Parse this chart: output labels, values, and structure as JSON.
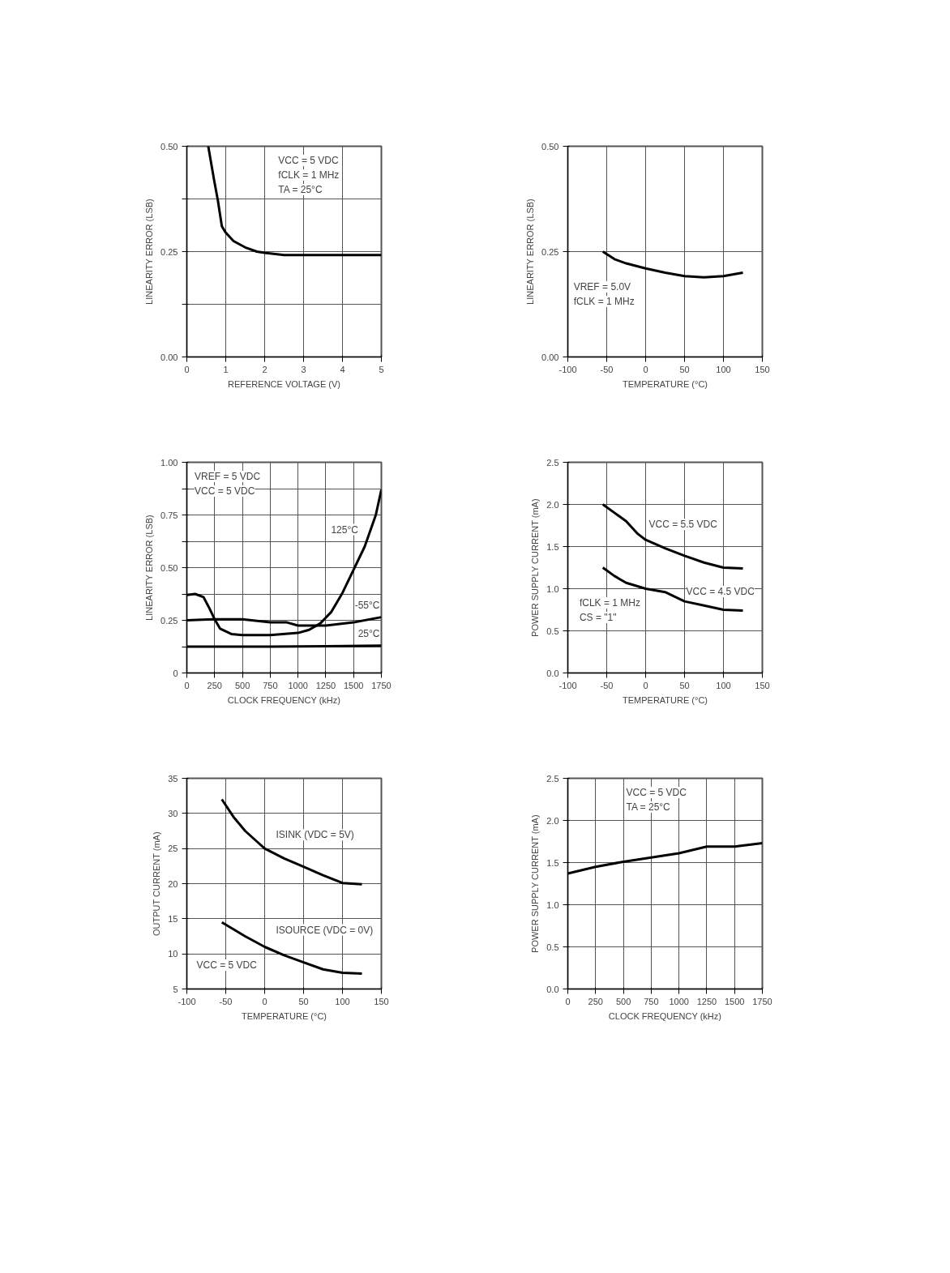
{
  "chart_data": [
    {
      "type": "line",
      "xlabel": "REFERENCE VOLTAGE (V)",
      "ylabel": "LINEARITY ERROR (LSB)",
      "xlim": [
        0,
        5
      ],
      "ylim": [
        0,
        0.5
      ],
      "xticks": [
        0,
        1,
        2,
        3,
        4,
        5
      ],
      "yticks": [
        {
          "value": 0,
          "label": "0.00"
        },
        {
          "value": 0.125,
          "label": null
        },
        {
          "value": 0.25,
          "label": "0.25"
        },
        {
          "value": 0.375,
          "label": null
        },
        {
          "value": 0.5,
          "label": "0.50"
        }
      ],
      "grid": true,
      "annotations": [
        "VCC = 5 VDC",
        "fCLK = 1 MHz",
        "TA = 25°C"
      ],
      "series": [
        {
          "color": "#000000",
          "x": [
            0.55,
            0.7,
            0.8,
            0.9,
            1.0,
            1.2,
            1.5,
            1.8,
            2.0,
            2.5,
            3,
            3.5,
            4,
            5
          ],
          "values": [
            0.5,
            0.42,
            0.37,
            0.31,
            0.295,
            0.275,
            0.26,
            0.25,
            0.247,
            0.242,
            0.242,
            0.242,
            0.242,
            0.242
          ]
        }
      ]
    },
    {
      "type": "line",
      "xlabel": "TEMPERATURE (°C)",
      "ylabel": "LINEARITY ERROR (LSB)",
      "xlim": [
        -100,
        150
      ],
      "ylim": [
        0,
        0.5
      ],
      "xticks": [
        -100,
        -50,
        0,
        50,
        100,
        150
      ],
      "yticks": [
        {
          "value": 0,
          "label": "0.00"
        },
        {
          "value": 0.25,
          "label": "0.25"
        },
        {
          "value": 0.5,
          "label": "0.50"
        }
      ],
      "grid": true,
      "annotations": [
        "VREF = 5.0V",
        "fCLK = 1 MHz"
      ],
      "series": [
        {
          "color": "#000000",
          "x": [
            -55,
            -40,
            -25,
            0,
            25,
            50,
            75,
            100,
            125
          ],
          "values": [
            0.25,
            0.232,
            0.222,
            0.21,
            0.2,
            0.192,
            0.189,
            0.192,
            0.2
          ]
        }
      ]
    },
    {
      "type": "line",
      "xlabel": "CLOCK FREQUENCY (kHz)",
      "ylabel": "LINEARITY ERROR (LSB)",
      "xlim": [
        0,
        1750
      ],
      "ylim": [
        0,
        1
      ],
      "xticks": [
        0,
        250,
        500,
        750,
        1000,
        1250,
        1500,
        1750
      ],
      "yticks": [
        0,
        {
          "value": 0.125,
          "label": null
        },
        {
          "value": 0.25,
          "label": "0.25"
        },
        {
          "value": 0.375,
          "label": null
        },
        {
          "value": 0.5,
          "label": "0.50"
        },
        {
          "value": 0.625,
          "label": null
        },
        {
          "value": 0.75,
          "label": "0.75"
        },
        {
          "value": 0.875,
          "label": null
        },
        {
          "value": 1,
          "label": "1.00"
        }
      ],
      "grid": true,
      "annotations": [
        "VREF = 5 VDC",
        "VCC = 5 VDC"
      ],
      "series": [
        {
          "name": "125°C",
          "color": "#000000",
          "x": [
            0,
            75,
            150,
            200,
            250,
            300,
            400,
            500,
            750,
            1000,
            1100,
            1200,
            1300,
            1400,
            1500,
            1600,
            1700,
            1750
          ],
          "values": [
            0.37,
            0.375,
            0.36,
            0.31,
            0.255,
            0.21,
            0.185,
            0.18,
            0.18,
            0.19,
            0.205,
            0.235,
            0.29,
            0.38,
            0.49,
            0.6,
            0.75,
            0.87
          ]
        },
        {
          "name": "-55°C",
          "color": "#000000",
          "x": [
            0,
            250,
            500,
            750,
            900,
            1000,
            1250,
            1500,
            1750
          ],
          "values": [
            0.25,
            0.255,
            0.255,
            0.24,
            0.24,
            0.225,
            0.225,
            0.24,
            0.265
          ]
        },
        {
          "name": "25°C",
          "color": "#000000",
          "x": [
            0,
            750,
            1250,
            1750
          ],
          "values": [
            0.125,
            0.125,
            0.127,
            0.13
          ]
        }
      ]
    },
    {
      "type": "line",
      "xlabel": "TEMPERATURE (°C)",
      "ylabel": "POWER SUPPLY CURRENT (mA)",
      "xlim": [
        -100,
        150
      ],
      "ylim": [
        0,
        2.5
      ],
      "xticks": [
        -100,
        -50,
        0,
        50,
        100,
        150
      ],
      "yticks": [
        {
          "value": 0,
          "label": "0.0"
        },
        0.5,
        {
          "value": 1,
          "label": "1.0"
        },
        1.5,
        {
          "value": 2,
          "label": "2.0"
        },
        2.5
      ],
      "grid": true,
      "annotations": [
        "fCLK = 1 MHz",
        "CS = \"1\""
      ],
      "series": [
        {
          "name": "VCC = 5.5 VDC",
          "color": "#000000",
          "x": [
            -55,
            -40,
            -25,
            -10,
            0,
            25,
            50,
            75,
            100,
            125
          ],
          "values": [
            2.0,
            1.9,
            1.8,
            1.65,
            1.58,
            1.48,
            1.39,
            1.31,
            1.25,
            1.24
          ]
        },
        {
          "name": "VCC = 4.5 VDC",
          "color": "#000000",
          "x": [
            -55,
            -40,
            -25,
            0,
            25,
            50,
            75,
            100,
            125
          ],
          "values": [
            1.25,
            1.15,
            1.07,
            1.0,
            0.96,
            0.85,
            0.8,
            0.75,
            0.74
          ]
        }
      ]
    },
    {
      "type": "line",
      "xlabel": "TEMPERATURE (°C)",
      "ylabel": "OUTPUT CURRENT (mA)",
      "xlim": [
        -100,
        150
      ],
      "ylim": [
        5,
        35
      ],
      "xticks": [
        -100,
        -50,
        0,
        50,
        100,
        150
      ],
      "yticks": [
        5,
        10,
        15,
        20,
        25,
        30,
        35
      ],
      "grid": true,
      "annotations": [
        "VCC = 5 VDC"
      ],
      "series": [
        {
          "name": "ISINK (VDC = 5V)",
          "color": "#000000",
          "x": [
            -55,
            -40,
            -25,
            -10,
            0,
            25,
            50,
            75,
            100,
            125
          ],
          "values": [
            32,
            29.5,
            27.5,
            26,
            25,
            23.6,
            22.4,
            21.2,
            20.1,
            19.9
          ]
        },
        {
          "name": "ISOURCE (VDC = 0V)",
          "color": "#000000",
          "x": [
            -55,
            -25,
            0,
            25,
            50,
            75,
            100,
            125
          ],
          "values": [
            14.5,
            12.5,
            11,
            9.8,
            8.8,
            7.8,
            7.3,
            7.2
          ]
        }
      ]
    },
    {
      "type": "line",
      "xlabel": "CLOCK FREQUENCY (kHz)",
      "ylabel": "POWER SUPPLY CURRENT (mA)",
      "xlim": [
        0,
        1750
      ],
      "ylim": [
        0,
        2.5
      ],
      "xticks": [
        0,
        250,
        500,
        750,
        1000,
        1250,
        1500,
        1750
      ],
      "yticks": [
        {
          "value": 0,
          "label": "0.0"
        },
        0.5,
        {
          "value": 1,
          "label": "1.0"
        },
        1.5,
        {
          "value": 2,
          "label": "2.0"
        },
        2.5
      ],
      "grid": true,
      "annotations": [
        "VCC = 5 VDC",
        "TA = 25°C"
      ],
      "series": [
        {
          "color": "#000000",
          "x": [
            0,
            250,
            500,
            750,
            1000,
            1250,
            1500,
            1750
          ],
          "values": [
            1.37,
            1.45,
            1.51,
            1.56,
            1.61,
            1.69,
            1.69,
            1.73
          ]
        }
      ]
    }
  ]
}
